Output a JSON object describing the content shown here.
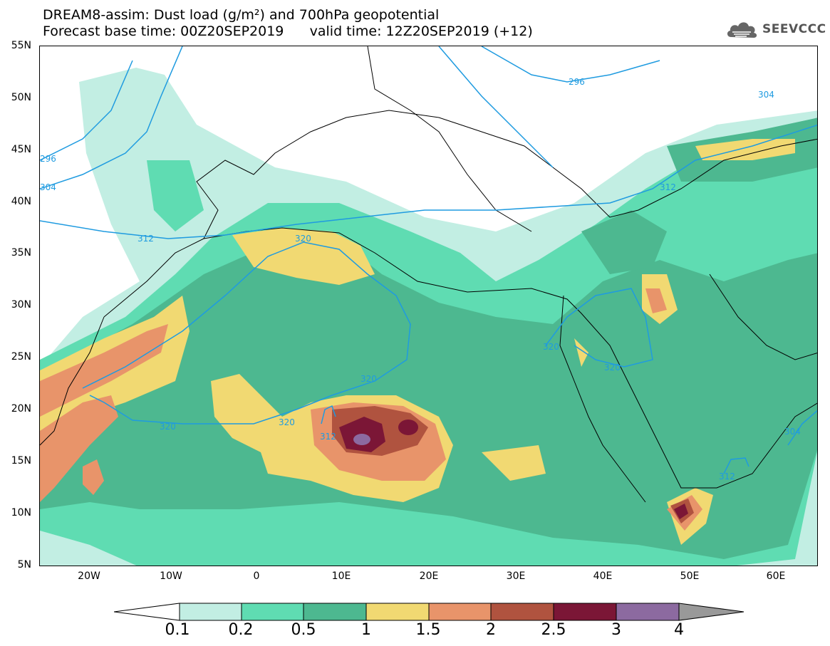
{
  "header": {
    "title_line1": "DREAM8-assim: Dust load (g/m²) and 700hPa geopotential",
    "title_line2": "Forecast base time: 00Z20SEP2019      valid time: 12Z20SEP2019 (+12)",
    "logo_text": "SEEVCCC",
    "logo_icon": "cloud-icon"
  },
  "map": {
    "lat_labels": [
      "55N",
      "50N",
      "45N",
      "40N",
      "35N",
      "30N",
      "25N",
      "20N",
      "15N",
      "10N",
      "5N"
    ],
    "lon_labels": [
      "20W",
      "10W",
      "0",
      "10E",
      "20E",
      "30E",
      "40E",
      "50E",
      "60E"
    ],
    "contour_labels": [
      "296",
      "304",
      "296",
      "304",
      "312",
      "320",
      "320",
      "320",
      "320",
      "320",
      "320",
      "312",
      "304",
      "312",
      "312",
      "320"
    ],
    "colors": {
      "c1": "#c2eee3",
      "c2": "#5fdcb2",
      "c3": "#4db890",
      "c4": "#f1d972",
      "c5": "#e8946a",
      "c6": "#b0533f",
      "c7": "#7b1636",
      "c8": "#8c6aa0",
      "contour": "#1f9be0"
    }
  },
  "colorbar": {
    "labels": [
      "0.1",
      "0.2",
      "0.5",
      "1",
      "1.5",
      "2",
      "2.5",
      "3",
      "4"
    ],
    "colors": [
      "#c2eee3",
      "#5fdcb2",
      "#4db890",
      "#f1d972",
      "#e8946a",
      "#b0533f",
      "#7b1636",
      "#8c6aa0"
    ]
  }
}
